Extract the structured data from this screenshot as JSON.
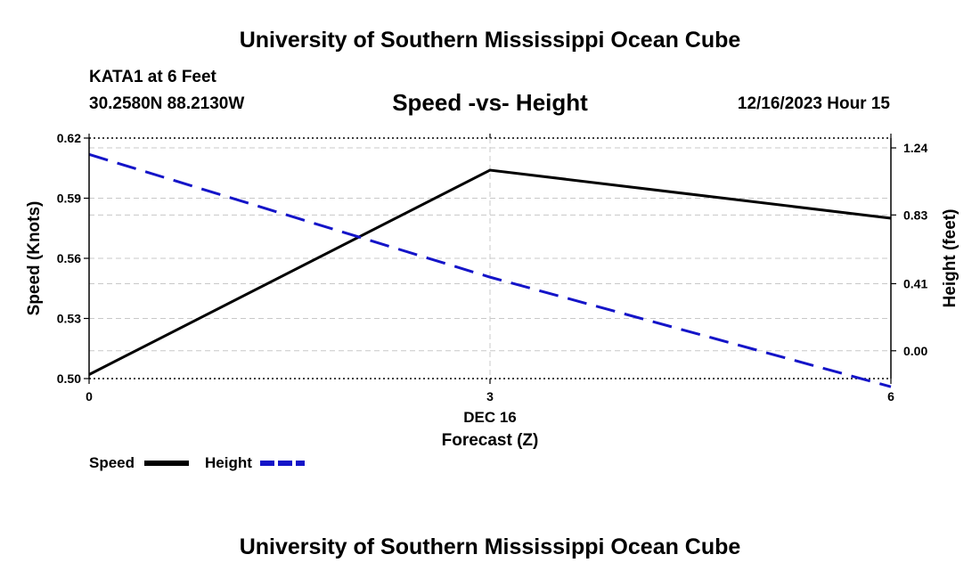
{
  "header": {
    "title": "University of Southern Mississippi Ocean Cube",
    "station": "KATA1 at 6 Feet",
    "coordinates": "30.2580N  88.2130W",
    "datetime": "12/16/2023 Hour 15"
  },
  "footer": {
    "title": "University of Southern Mississippi Ocean Cube"
  },
  "chart_data": {
    "type": "line",
    "title": "Speed -vs- Height",
    "xlabel": "Forecast (Z)",
    "x_sublabel": "DEC 16",
    "x": [
      0,
      3,
      6
    ],
    "x_ticks": [
      "0",
      "3",
      "6"
    ],
    "xlim": [
      0,
      6
    ],
    "ylabel": "Speed (Knots)",
    "ylim": [
      0.5,
      0.62
    ],
    "y_ticks": [
      "0.50",
      "0.53",
      "0.56",
      "0.59",
      "0.62"
    ],
    "y2label": "Height (feet)",
    "y2lim": [
      -0.17,
      1.3
    ],
    "y2_ticks": [
      "0.00",
      "0.41",
      "0.83",
      "1.24"
    ],
    "grid": true,
    "legend_position": "bottom-left",
    "series": [
      {
        "name": "Speed",
        "axis": "left",
        "color": "#000000",
        "style": "solid",
        "values": [
          0.502,
          0.604,
          0.58
        ]
      },
      {
        "name": "Height",
        "axis": "right",
        "color": "#1414c8",
        "style": "dashed",
        "values": [
          1.2,
          0.45,
          -0.22
        ]
      }
    ]
  }
}
